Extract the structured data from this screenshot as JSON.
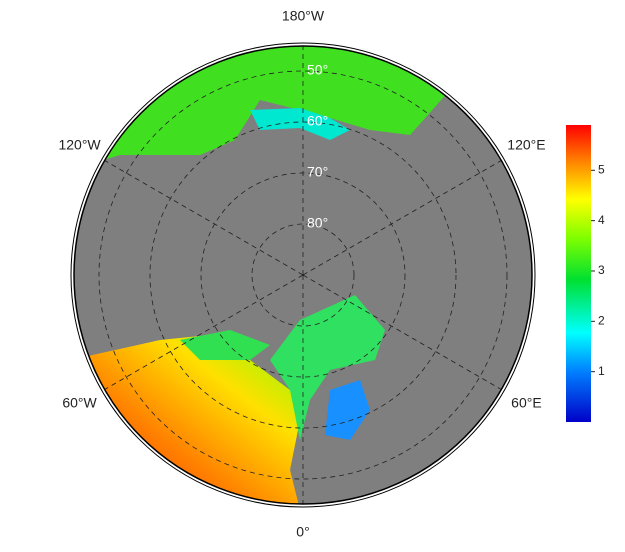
{
  "map": {
    "meridian_labels": [
      {
        "value": 180,
        "label": "180°W"
      },
      {
        "value": 120,
        "label": "120°E"
      },
      {
        "value": 60,
        "label": "60°E"
      },
      {
        "value": 0,
        "label": "0°"
      },
      {
        "value": -60,
        "label": "60°W"
      },
      {
        "value": -120,
        "label": "120°W"
      }
    ],
    "latitude_labels": [
      {
        "value": 50,
        "label": "50°"
      },
      {
        "value": 60,
        "label": "60°"
      },
      {
        "value": 70,
        "label": "70°"
      },
      {
        "value": 80,
        "label": "80°"
      }
    ],
    "colorbar": {
      "lim": [
        0,
        5.9
      ],
      "ticks": [
        1,
        2,
        3,
        4,
        5
      ]
    }
  }
}
